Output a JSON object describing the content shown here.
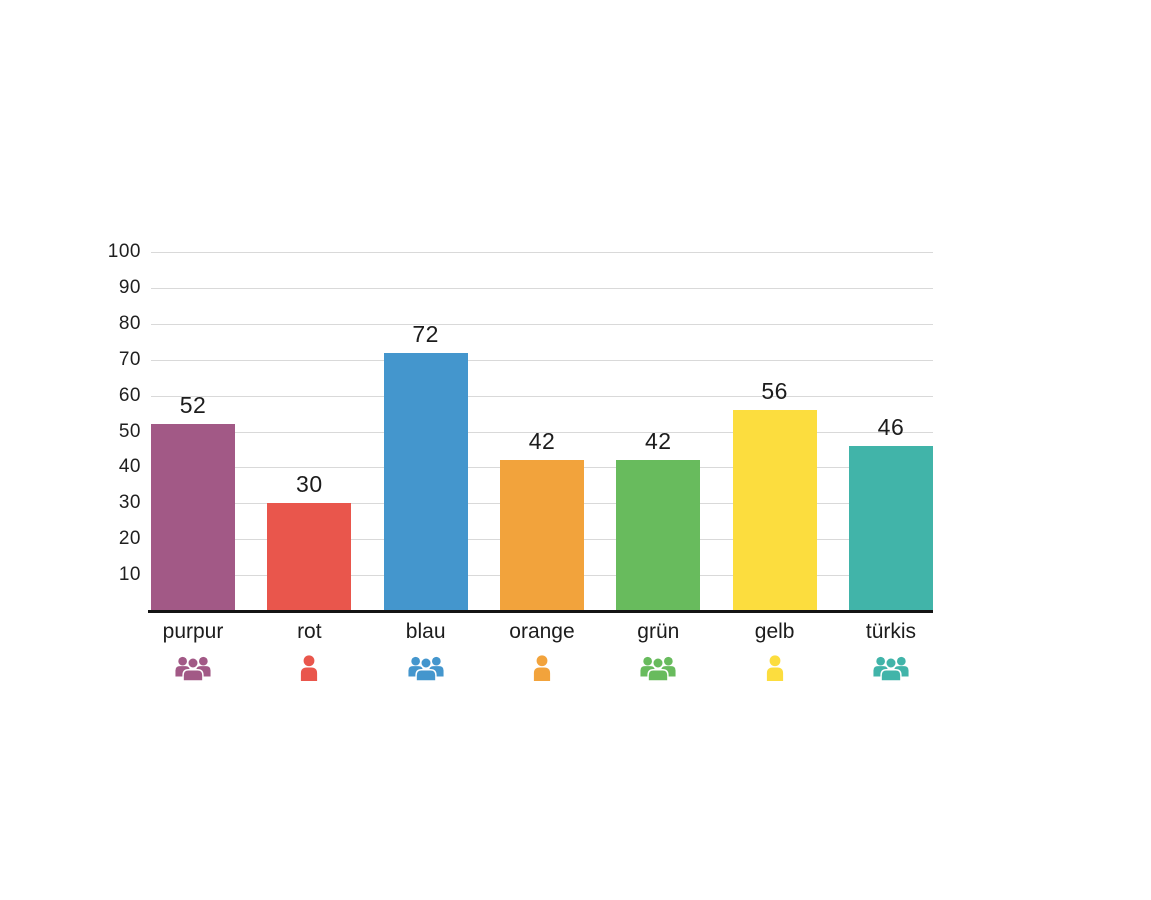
{
  "chart_data": {
    "type": "bar",
    "title": "",
    "xlabel": "",
    "ylabel": "",
    "categories": [
      "purpur",
      "rot",
      "blau",
      "orange",
      "grün",
      "gelb",
      "türkis"
    ],
    "values": [
      52,
      30,
      72,
      42,
      42,
      56,
      46
    ],
    "colors": [
      "#a25986",
      "#e9564c",
      "#4496cd",
      "#f2a33c",
      "#68bb5d",
      "#fcdd3e",
      "#41b4a9"
    ],
    "icons": [
      "users",
      "user",
      "users",
      "user",
      "users",
      "user",
      "users"
    ],
    "ylim": [
      0,
      100
    ],
    "ytick_labels": [
      "100",
      "90",
      "80",
      "70",
      "60",
      "50",
      "40",
      "30",
      "20",
      "10"
    ],
    "grid": true,
    "legend": false
  },
  "styles": {
    "background": "#ffffff",
    "grid_color": "#d9d9d9",
    "axis_color": "#141414",
    "text_color": "#1c1c1c"
  }
}
